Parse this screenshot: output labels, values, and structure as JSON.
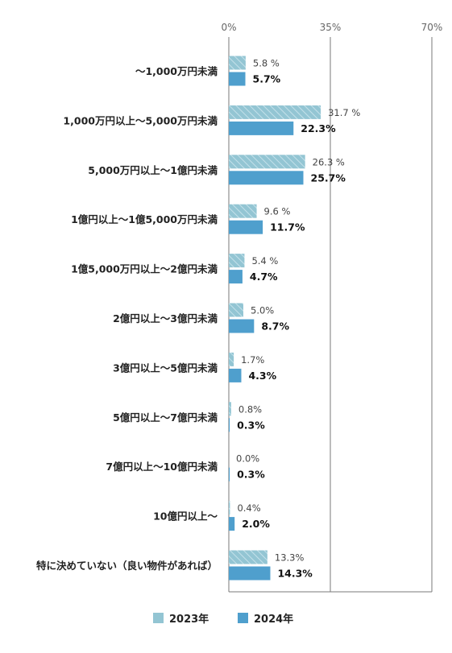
{
  "chart_data": {
    "type": "bar",
    "orientation": "horizontal",
    "title": "",
    "xlabel": "",
    "ylabel": "",
    "xlim": [
      0,
      70
    ],
    "x_ticks": [
      "0%",
      "35%",
      "70%"
    ],
    "x_tick_values": [
      0,
      35,
      70
    ],
    "grid": true,
    "legend_position": "bottom",
    "categories": [
      "〜1,000万円未満",
      "1,000万円以上〜5,000万円未満",
      "5,000万円以上〜1億円未満",
      "1億円以上〜1億5,000万円未満",
      "1億5,000万円以上〜2億円未満",
      "2億円以上〜3億円未満",
      "3億円以上〜5億円未満",
      "5億円以上〜7億円未満",
      "7億円以上〜10億円未満",
      "10億円以上〜",
      "特に決めていない（良い物件があれば）"
    ],
    "series": [
      {
        "name": "2023年",
        "color": "#93c5d3",
        "pattern": "hatched",
        "values": [
          5.8,
          31.7,
          26.3,
          9.6,
          5.4,
          5.0,
          1.7,
          0.8,
          0.0,
          0.4,
          13.3
        ],
        "labels": [
          "5.8 %",
          "31.7 %",
          "26.3 %",
          "9.6 %",
          "5.4 %",
          "5.0%",
          "1.7%",
          "0.8%",
          "0.0%",
          "0.4%",
          "13.3%"
        ]
      },
      {
        "name": "2024年",
        "color": "#4f9fcd",
        "pattern": "solid",
        "values": [
          5.7,
          22.3,
          25.7,
          11.7,
          4.7,
          8.7,
          4.3,
          0.3,
          0.3,
          2.0,
          14.3
        ],
        "labels": [
          "5.7%",
          "22.3%",
          "25.7%",
          "11.7%",
          "4.7%",
          "8.7%",
          "4.3%",
          "0.3%",
          "0.3%",
          "2.0%",
          "14.3%"
        ]
      }
    ]
  }
}
